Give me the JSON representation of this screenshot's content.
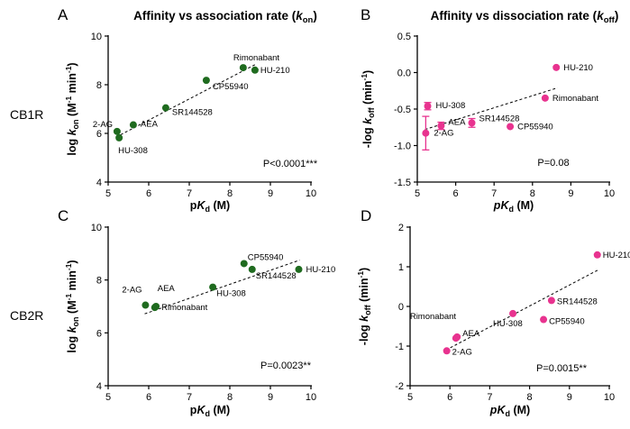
{
  "row_labels": [
    "CB1R",
    "CB2R"
  ],
  "colors": {
    "green": "#1f6b1f",
    "pink": "#e8338f"
  },
  "chart_data": [
    {
      "type": "scatter",
      "letter": "A",
      "title_prefix": "Affinity vs association rate (",
      "title_var": "k",
      "title_sub": "on",
      "title_suffix": ")",
      "ylabel_prefix": "log ",
      "ylabel_var": "k",
      "ylabel_sub": "on",
      "ylabel_unit": " (M",
      "ylabel_sup": "-1",
      "ylabel_unit2": " min",
      "ylabel_sup2": "-1",
      "ylabel_close": ")",
      "xlabel_p": "p",
      "xlabel_var": "K",
      "xlabel_sub": "d",
      "xlabel_unit": " (M)",
      "xlim": [
        5,
        10
      ],
      "ylim": [
        4,
        10
      ],
      "xticks": [
        "5",
        "6",
        "7",
        "8",
        "9",
        "10"
      ],
      "yticks": [
        "4",
        "6",
        "8",
        "10"
      ],
      "color": "#1f6b1f",
      "points": [
        {
          "name": "2-AG",
          "x": 5.22,
          "y": 6.08
        },
        {
          "name": "HU-308",
          "x": 5.27,
          "y": 5.82
        },
        {
          "name": "AEA",
          "x": 5.62,
          "y": 6.35
        },
        {
          "name": "SR144528",
          "x": 6.42,
          "y": 7.05
        },
        {
          "name": "CP55940",
          "x": 7.42,
          "y": 8.18
        },
        {
          "name": "Rimonabant",
          "x": 8.33,
          "y": 8.7
        },
        {
          "name": "HU-210",
          "x": 8.62,
          "y": 8.6
        }
      ],
      "trend": [
        [
          5.2,
          5.85
        ],
        [
          8.65,
          8.85
        ]
      ],
      "pvalue": "P<0.0001***"
    },
    {
      "type": "scatter",
      "letter": "B",
      "title_prefix": "Affinity vs dissociation rate (",
      "title_var": "k",
      "title_sub": "off",
      "title_suffix": ")",
      "ylabel_prefix": "-log ",
      "ylabel_var": "k",
      "ylabel_sub": "off",
      "ylabel_unit": " (min",
      "ylabel_sup": "-1",
      "ylabel_close": ")",
      "xlabel_p": "p",
      "xlabel_var": "K",
      "xlabel_sub": "d",
      "xlabel_unit": " (M)",
      "xlim": [
        5,
        10
      ],
      "ylim": [
        -1.5,
        0.5
      ],
      "xticks": [
        "5",
        "6",
        "7",
        "8",
        "9",
        "10"
      ],
      "yticks": [
        "-1.5",
        "-1.0",
        "-0.5",
        "0.0",
        "0.5"
      ],
      "color": "#e8338f",
      "points": [
        {
          "name": "2-AG",
          "x": 5.22,
          "y": -0.83,
          "err": 0.23
        },
        {
          "name": "HU-308",
          "x": 5.27,
          "y": -0.46,
          "err": 0.05
        },
        {
          "name": "AEA",
          "x": 5.62,
          "y": -0.73,
          "err": 0.05
        },
        {
          "name": "SR144528",
          "x": 6.42,
          "y": -0.69,
          "err": 0.06
        },
        {
          "name": "CP55940",
          "x": 7.42,
          "y": -0.74
        },
        {
          "name": "Rimonabant",
          "x": 8.33,
          "y": -0.35
        },
        {
          "name": "HU-210",
          "x": 8.62,
          "y": 0.07
        }
      ],
      "trend": [
        [
          5.2,
          -0.78
        ],
        [
          8.65,
          -0.21
        ]
      ],
      "pvalue": "P=0.08"
    },
    {
      "type": "scatter",
      "letter": "C",
      "ylabel_prefix": "log ",
      "ylabel_var": "k",
      "ylabel_sub": "on",
      "ylabel_unit": " (M",
      "ylabel_sup": "-1",
      "ylabel_unit2": " min",
      "ylabel_sup2": "-1",
      "ylabel_close": ")",
      "xlabel_p": "p",
      "xlabel_var": "K",
      "xlabel_sub": "d",
      "xlabel_unit": " (M)",
      "xlim": [
        5,
        10
      ],
      "ylim": [
        4,
        10
      ],
      "xticks": [
        "5",
        "6",
        "7",
        "8",
        "9",
        "10"
      ],
      "yticks": [
        "4",
        "6",
        "8",
        "10"
      ],
      "color": "#1f6b1f",
      "points": [
        {
          "name": "2-AG",
          "x": 5.92,
          "y": 7.05
        },
        {
          "name": "AEA",
          "x": 6.15,
          "y": 6.96
        },
        {
          "name": "Rimonabant",
          "x": 6.18,
          "y": 7.0
        },
        {
          "name": "HU-308",
          "x": 7.58,
          "y": 7.73
        },
        {
          "name": "CP55940",
          "x": 8.35,
          "y": 8.62
        },
        {
          "name": "SR144528",
          "x": 8.55,
          "y": 8.4
        },
        {
          "name": "HU-210",
          "x": 9.7,
          "y": 8.4
        }
      ],
      "trend": [
        [
          5.9,
          6.72
        ],
        [
          9.72,
          8.75
        ]
      ],
      "pvalue": "P=0.0023**"
    },
    {
      "type": "scatter",
      "letter": "D",
      "ylabel_prefix": "-log ",
      "ylabel_var": "k",
      "ylabel_sub": "off",
      "ylabel_unit": " (min",
      "ylabel_sup": "-1",
      "ylabel_close": ")",
      "xlabel_p": "p",
      "xlabel_var": "K",
      "xlabel_sub": "d",
      "xlabel_unit": " (M)",
      "xlim": [
        5,
        10
      ],
      "ylim": [
        -2,
        2
      ],
      "xticks": [
        "5",
        "6",
        "7",
        "8",
        "9",
        "10"
      ],
      "yticks": [
        "-2",
        "-1",
        "0",
        "1",
        "2"
      ],
      "color": "#e8338f",
      "points": [
        {
          "name": "2-AG",
          "x": 5.92,
          "y": -1.12
        },
        {
          "name": "Rimonabant",
          "x": 6.15,
          "y": -0.8
        },
        {
          "name": "AEA",
          "x": 6.18,
          "y": -0.77
        },
        {
          "name": "HU-308",
          "x": 7.58,
          "y": -0.18
        },
        {
          "name": "CP55940",
          "x": 8.35,
          "y": -0.33
        },
        {
          "name": "SR144528",
          "x": 8.55,
          "y": 0.15
        },
        {
          "name": "HU-210",
          "x": 9.7,
          "y": 1.3
        }
      ],
      "trend": [
        [
          5.9,
          -1.1
        ],
        [
          9.72,
          0.92
        ]
      ],
      "pvalue": "P=0.0015**"
    }
  ]
}
